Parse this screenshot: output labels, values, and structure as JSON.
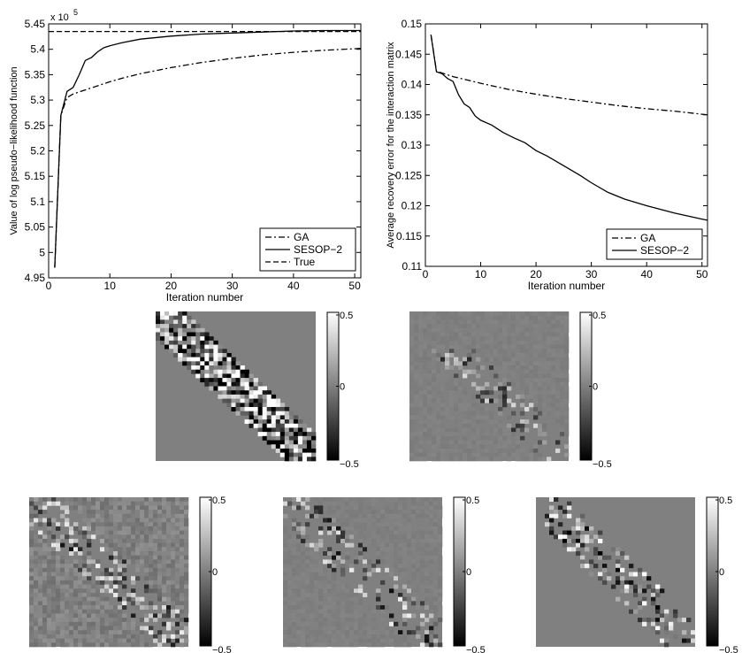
{
  "chart_data": [
    {
      "type": "line",
      "title": "",
      "xlabel": "Iteration number",
      "ylabel": "Value of log pseudo−likelihood function",
      "y_exponent_label": "x 10",
      "y_exponent": "5",
      "xlim": [
        0,
        51
      ],
      "ylim": [
        4.95,
        5.45
      ],
      "xticks": [
        "0",
        "10",
        "20",
        "30",
        "40",
        "50"
      ],
      "yticks": [
        "4.95",
        "5",
        "5.05",
        "5.1",
        "5.15",
        "5.2",
        "5.25",
        "5.3",
        "5.35",
        "5.4",
        "5.45"
      ],
      "legend_position": "bottom-right",
      "series": [
        {
          "name": "GA",
          "style": "dashdot",
          "x": [
            1,
            2,
            3,
            4,
            5,
            6,
            8,
            10,
            12,
            15,
            20,
            25,
            30,
            35,
            40,
            45,
            50,
            51
          ],
          "y": [
            4.97,
            5.27,
            5.305,
            5.312,
            5.316,
            5.32,
            5.328,
            5.336,
            5.343,
            5.352,
            5.364,
            5.374,
            5.382,
            5.389,
            5.394,
            5.398,
            5.401,
            5.402
          ]
        },
        {
          "name": "SESOP−2",
          "style": "solid",
          "x": [
            1,
            2,
            3,
            4,
            5,
            6,
            7,
            8,
            9,
            10,
            12,
            15,
            20,
            25,
            30,
            35,
            40,
            45,
            50,
            51
          ],
          "y": [
            4.97,
            5.27,
            5.317,
            5.325,
            5.35,
            5.378,
            5.384,
            5.395,
            5.403,
            5.407,
            5.413,
            5.42,
            5.426,
            5.43,
            5.432,
            5.434,
            5.436,
            5.437,
            5.437,
            5.437
          ]
        },
        {
          "name": "True",
          "style": "dashed",
          "x": [
            0,
            51
          ],
          "y": [
            5.435,
            5.435
          ]
        }
      ]
    },
    {
      "type": "line",
      "title": "",
      "xlabel": "Iteration number",
      "ylabel": "Average recovery error for the interaction matrix",
      "xlim": [
        0,
        51
      ],
      "ylim": [
        0.11,
        0.15
      ],
      "xticks": [
        "0",
        "10",
        "20",
        "30",
        "40",
        "50"
      ],
      "yticks": [
        "0.11",
        "0.115",
        "0.12",
        "0.125",
        "0.13",
        "0.135",
        "0.14",
        "0.145",
        "0.15"
      ],
      "legend_position": "bottom-right",
      "series": [
        {
          "name": "GA",
          "style": "dashdot",
          "x": [
            1,
            2,
            3,
            5,
            10,
            15,
            20,
            25,
            30,
            35,
            40,
            45,
            50,
            51
          ],
          "y": [
            0.1482,
            0.1422,
            0.1419,
            0.1413,
            0.1402,
            0.1392,
            0.1384,
            0.1377,
            0.1371,
            0.1365,
            0.136,
            0.1356,
            0.1351,
            0.135
          ]
        },
        {
          "name": "SESOP−2",
          "style": "solid",
          "x": [
            1,
            2,
            3,
            4,
            5,
            6,
            7,
            8,
            9,
            10,
            12,
            14,
            16,
            18,
            20,
            22,
            25,
            28,
            30,
            33,
            36,
            40,
            45,
            50,
            51
          ],
          "y": [
            0.1482,
            0.1421,
            0.1418,
            0.141,
            0.1405,
            0.1383,
            0.1368,
            0.1362,
            0.1348,
            0.1341,
            0.1333,
            0.1321,
            0.1312,
            0.1304,
            0.1291,
            0.1282,
            0.1266,
            0.125,
            0.1238,
            0.1222,
            0.1211,
            0.12,
            0.1188,
            0.1178,
            0.1176
          ]
        }
      ]
    },
    {
      "type": "heatmap",
      "colorbar_ticks": [
        "0.5",
        "0",
        "−0.5"
      ],
      "vlim": [
        -0.5,
        0.5
      ],
      "colormap": "gray",
      "panels": [
        {
          "pattern": "banded-diagonal",
          "band_intensity": 0.9,
          "background_noise": 0.0
        },
        {
          "pattern": "sparse-lower-diagonal",
          "band_intensity": 0.45,
          "background_noise": 0.02
        },
        {
          "pattern": "noisy-banded-diagonal",
          "band_intensity": 0.55,
          "background_noise": 0.07
        },
        {
          "pattern": "sparse-banded-diagonal",
          "band_intensity": 0.55,
          "background_noise": 0.02
        },
        {
          "pattern": "sparse-banded-diagonal",
          "band_intensity": 0.65,
          "background_noise": 0.0
        }
      ]
    }
  ]
}
